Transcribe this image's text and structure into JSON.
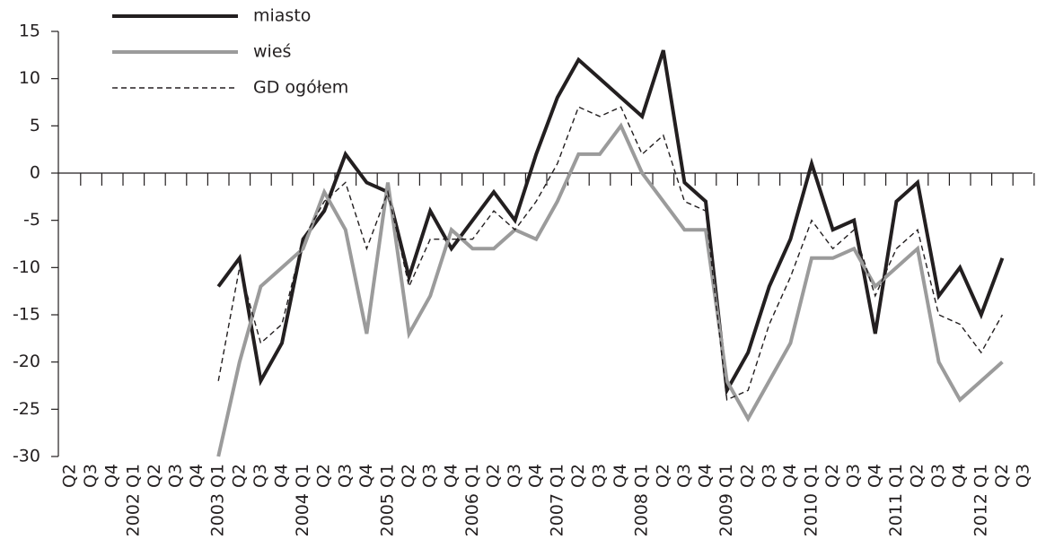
{
  "chart_data": {
    "type": "line",
    "categories": [
      "Q2",
      "Q3",
      "Q4",
      "2002 Q1",
      "Q2",
      "Q3",
      "Q4",
      "2003 Q1",
      "Q2",
      "Q3",
      "Q4",
      "2004 Q1",
      "Q2",
      "Q3",
      "Q4",
      "2005 Q1",
      "Q2",
      "Q3",
      "Q4",
      "2006 Q1",
      "Q2",
      "Q3",
      "Q4",
      "2007 Q1",
      "Q2",
      "Q3",
      "Q4",
      "2008 Q1",
      "Q2",
      "Q3",
      "Q4",
      "2009 Q1",
      "Q2",
      "Q3",
      "Q4",
      "2010 Q1",
      "Q2",
      "Q3",
      "Q4",
      "2011 Q1",
      "Q2",
      "Q3",
      "Q4",
      "2012 Q1",
      "Q2",
      "Q3"
    ],
    "series": [
      {
        "name": "miasto",
        "color": "#231f20",
        "style": "solid",
        "values": [
          null,
          null,
          null,
          null,
          null,
          null,
          null,
          -12,
          -9,
          -22,
          -18,
          -7,
          -4,
          2,
          -1,
          -2,
          -11,
          -4,
          -8,
          -5,
          -2,
          -5,
          2,
          8,
          12,
          10,
          8,
          6,
          13,
          -1,
          -3,
          -23,
          -19,
          -12,
          -7,
          1,
          -6,
          -5,
          -17,
          -3,
          -1,
          -13,
          -10,
          -15,
          -9,
          null
        ]
      },
      {
        "name": "wieś",
        "color": "#9b9b9b",
        "style": "solid",
        "values": [
          null,
          null,
          null,
          null,
          null,
          null,
          null,
          -30,
          -20,
          -12,
          -10,
          -8,
          -2,
          -6,
          -17,
          -1,
          -17,
          -13,
          -6,
          -8,
          -8,
          -6,
          -7,
          -3,
          2,
          2,
          5,
          0,
          -3,
          -6,
          -6,
          -22,
          -26,
          -22,
          -18,
          -9,
          -9,
          -8,
          -12,
          -10,
          -8,
          -20,
          -24,
          -22,
          -20,
          null
        ]
      },
      {
        "name": "GD ogółem",
        "color": "#231f20",
        "style": "dashed",
        "values": [
          null,
          null,
          null,
          null,
          null,
          null,
          null,
          -22,
          -10,
          -18,
          -16,
          -7,
          -3,
          -1,
          -8,
          -2,
          -12,
          -7,
          -7,
          -7,
          -4,
          -6,
          -3,
          1,
          7,
          6,
          7,
          2,
          4,
          -3,
          -4,
          -24,
          -23,
          -16,
          -11,
          -5,
          -8,
          -6,
          -13,
          -8,
          -6,
          -15,
          -16,
          -19,
          -15,
          null
        ]
      }
    ],
    "ylim": [
      -30,
      15
    ],
    "yticks": [
      -30,
      -25,
      -20,
      -15,
      -10,
      -5,
      0,
      5,
      10,
      15
    ],
    "legend": "top-left"
  }
}
